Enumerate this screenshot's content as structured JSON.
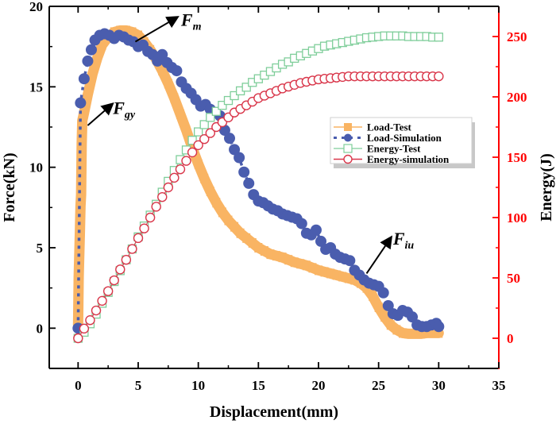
{
  "chart_data": {
    "type": "scatter",
    "title": "",
    "xlabel": "Displacement(mm)",
    "ylabel": "Force(kN)",
    "y2label": "Energy(J)",
    "xlim": [
      -2.4,
      35
    ],
    "ylim": [
      -2.5,
      20
    ],
    "y2lim": [
      -25,
      275
    ],
    "x_ticks": [
      0,
      5,
      10,
      15,
      20,
      25,
      30,
      35
    ],
    "x_tick_labels": [
      "0",
      "5",
      "10",
      "15",
      "20",
      "25",
      "30",
      "35"
    ],
    "y_ticks": [
      0,
      5,
      10,
      15,
      20
    ],
    "y_tick_labels": [
      "0",
      "5",
      "10",
      "15",
      "20"
    ],
    "y2_ticks": [
      0,
      50,
      100,
      150,
      200,
      250
    ],
    "y2_tick_labels": [
      "0",
      "50",
      "100",
      "150",
      "200",
      "250"
    ],
    "grid": false,
    "legend_position": "center-right",
    "colors": {
      "load_test": "#F9B463",
      "load_sim": "#4A5DAE",
      "energy_test": "#7FCE9A",
      "energy_sim": "#D9364A",
      "right_axis": "#FF0000",
      "axis": "#000000"
    },
    "series": [
      {
        "name": "Load-Test",
        "axis": "left",
        "marker": "filled-square",
        "x": [
          0,
          0.05,
          0.1,
          0.15,
          0.2,
          0.25,
          0.3,
          0.35,
          0.5,
          0.8,
          1.2,
          1.6,
          2.0,
          2.5,
          3.0,
          3.5,
          4.0,
          4.5,
          5.0,
          5.5,
          6.0,
          6.5,
          7.0,
          7.5,
          8.0,
          8.5,
          9.0,
          9.5,
          10.0,
          10.5,
          11.0,
          11.5,
          12.0,
          12.5,
          13.0,
          13.5,
          14.0,
          14.5,
          15.0,
          15.5,
          16.0,
          16.5,
          17.0,
          17.5,
          18.0,
          18.5,
          19.0,
          19.5,
          20.0,
          20.5,
          21.0,
          21.5,
          22.0,
          22.5,
          23.0,
          23.5,
          24.0,
          24.5,
          25.0,
          25.5,
          26.0,
          26.5,
          27.0,
          27.5,
          28.0,
          28.5,
          29.0,
          29.5,
          30.0
        ],
        "y": [
          0.2,
          3.2,
          4.6,
          6.0,
          7.6,
          8.3,
          11.5,
          12.9,
          13.4,
          14.5,
          15.8,
          16.8,
          17.6,
          18.1,
          18.4,
          18.5,
          18.5,
          18.4,
          18.2,
          17.8,
          17.3,
          16.7,
          16.0,
          15.2,
          14.3,
          13.3,
          12.3,
          11.2,
          10.2,
          9.3,
          8.5,
          7.8,
          7.2,
          6.7,
          6.3,
          5.9,
          5.6,
          5.3,
          5.0,
          4.8,
          4.6,
          4.5,
          4.4,
          4.25,
          4.1,
          4.0,
          3.9,
          3.75,
          3.6,
          3.5,
          3.4,
          3.3,
          3.2,
          3.1,
          3.0,
          2.8,
          2.5,
          2.0,
          1.3,
          0.7,
          0.2,
          -0.1,
          -0.3,
          -0.35,
          -0.35,
          -0.35,
          -0.3,
          -0.3,
          -0.3
        ]
      },
      {
        "name": "Load-Simulation",
        "axis": "left",
        "marker": "filled-circle",
        "x": [
          0,
          0.2,
          0.5,
          0.8,
          1.1,
          1.4,
          1.8,
          2.2,
          2.6,
          3.0,
          3.4,
          3.8,
          4.2,
          4.6,
          5.0,
          5.4,
          5.8,
          6.2,
          6.6,
          7.0,
          7.4,
          7.8,
          8.2,
          8.6,
          9.0,
          9.4,
          9.8,
          10.2,
          10.6,
          11.0,
          11.4,
          11.8,
          12.2,
          12.6,
          13.0,
          13.4,
          13.8,
          14.2,
          14.6,
          15.0,
          15.4,
          15.8,
          16.2,
          16.6,
          17.0,
          17.4,
          17.8,
          18.2,
          18.6,
          19.0,
          19.4,
          19.8,
          20.2,
          20.6,
          21.0,
          21.4,
          21.8,
          22.2,
          22.6,
          23.0,
          23.4,
          23.8,
          24.2,
          24.6,
          25.0,
          25.4,
          25.8,
          26.2,
          26.6,
          27.0,
          27.4,
          27.8,
          28.2,
          28.6,
          29.0,
          29.4,
          29.8,
          30.0
        ],
        "y": [
          0,
          14.0,
          15.5,
          16.6,
          17.3,
          17.9,
          18.2,
          18.3,
          18.2,
          18.0,
          18.2,
          18.1,
          17.9,
          17.8,
          17.5,
          17.6,
          17.2,
          17.0,
          16.6,
          17.0,
          16.5,
          16.2,
          16.0,
          15.3,
          14.9,
          14.6,
          14.2,
          13.8,
          13.9,
          13.6,
          13.4,
          13.2,
          12.3,
          11.8,
          11.1,
          10.6,
          9.7,
          9.0,
          8.3,
          7.9,
          7.8,
          7.6,
          7.4,
          7.3,
          7.1,
          7.0,
          6.9,
          6.8,
          6.5,
          5.9,
          5.8,
          6.1,
          5.4,
          4.9,
          5.0,
          4.6,
          4.4,
          4.3,
          4.2,
          3.6,
          3.3,
          3.0,
          2.8,
          2.7,
          2.6,
          2.2,
          1.4,
          0.9,
          0.8,
          1.1,
          1.0,
          0.7,
          0.2,
          0.1,
          0.1,
          0.2,
          0.3,
          0.1
        ]
      },
      {
        "name": "Energy-Test",
        "axis": "right",
        "marker": "open-square",
        "x": [
          0,
          0.5,
          1.0,
          1.5,
          2.0,
          2.5,
          3.0,
          3.5,
          4.0,
          4.5,
          5.0,
          5.5,
          6.0,
          6.5,
          7.0,
          7.5,
          8.0,
          8.5,
          9.0,
          9.5,
          10.0,
          10.5,
          11.0,
          11.5,
          12.0,
          12.5,
          13.0,
          13.5,
          14.0,
          14.5,
          15.0,
          15.5,
          16.0,
          16.5,
          17.0,
          17.5,
          18.0,
          18.5,
          19.0,
          19.5,
          20.0,
          20.5,
          21.0,
          21.5,
          22.0,
          22.5,
          23.0,
          23.5,
          24.0,
          24.5,
          25.0,
          25.5,
          26.0,
          26.5,
          27.0,
          27.5,
          28.0,
          28.5,
          29.0,
          29.5,
          30.0
        ],
        "y": [
          0,
          5,
          12,
          20,
          29,
          38,
          47,
          56,
          65,
          74,
          84,
          93,
          102,
          111,
          121,
          130,
          139,
          148,
          156,
          164,
          171,
          177,
          183,
          188,
          193,
          197,
          201,
          205,
          208,
          212,
          215,
          218,
          221,
          224,
          227,
          229,
          232,
          234,
          236,
          238,
          240,
          242,
          243,
          244,
          245,
          246,
          247,
          248,
          249,
          249.5,
          250,
          250.5,
          250.5,
          250.5,
          250.5,
          250,
          250,
          250,
          250,
          249.5,
          249.5
        ]
      },
      {
        "name": "Energy-simulation",
        "axis": "right",
        "marker": "open-circle",
        "x": [
          0,
          0.5,
          1.0,
          1.5,
          2.0,
          2.5,
          3.0,
          3.5,
          4.0,
          4.5,
          5.0,
          5.5,
          6.0,
          6.5,
          7.0,
          7.5,
          8.0,
          8.5,
          9.0,
          9.5,
          10.0,
          10.5,
          11.0,
          11.5,
          12.0,
          12.5,
          13.0,
          13.5,
          14.0,
          14.5,
          15.0,
          15.5,
          16.0,
          16.5,
          17.0,
          17.5,
          18.0,
          18.5,
          19.0,
          19.5,
          20.0,
          20.5,
          21.0,
          21.5,
          22.0,
          22.5,
          23.0,
          23.5,
          24.0,
          24.5,
          25.0,
          25.5,
          26.0,
          26.5,
          27.0,
          27.5,
          28.0,
          28.5,
          29.0,
          29.5,
          30.0
        ],
        "y": [
          0,
          8,
          15,
          23,
          31,
          39,
          48,
          57,
          65,
          74,
          83,
          91,
          100,
          109,
          117,
          125,
          133,
          140,
          147,
          154,
          160,
          165,
          170,
          175,
          179,
          183,
          187,
          190,
          193,
          196,
          199,
          201,
          203,
          205,
          207,
          208.5,
          210,
          211.5,
          212.5,
          213.5,
          214.5,
          215,
          215.5,
          216,
          216.5,
          217,
          217,
          217,
          217,
          217,
          217,
          217,
          217,
          217,
          217,
          217,
          217,
          217,
          217,
          217,
          217
        ]
      }
    ],
    "annotations": [
      {
        "label": "F",
        "subscript": "m",
        "at_x": 4.5,
        "at_y": 18.3
      },
      {
        "label": "F",
        "subscript": "gy",
        "at_x": 0.5,
        "at_y": 12.8
      },
      {
        "label": "F",
        "subscript": "iu",
        "at_x": 24.5,
        "at_y": 3.0
      }
    ]
  }
}
